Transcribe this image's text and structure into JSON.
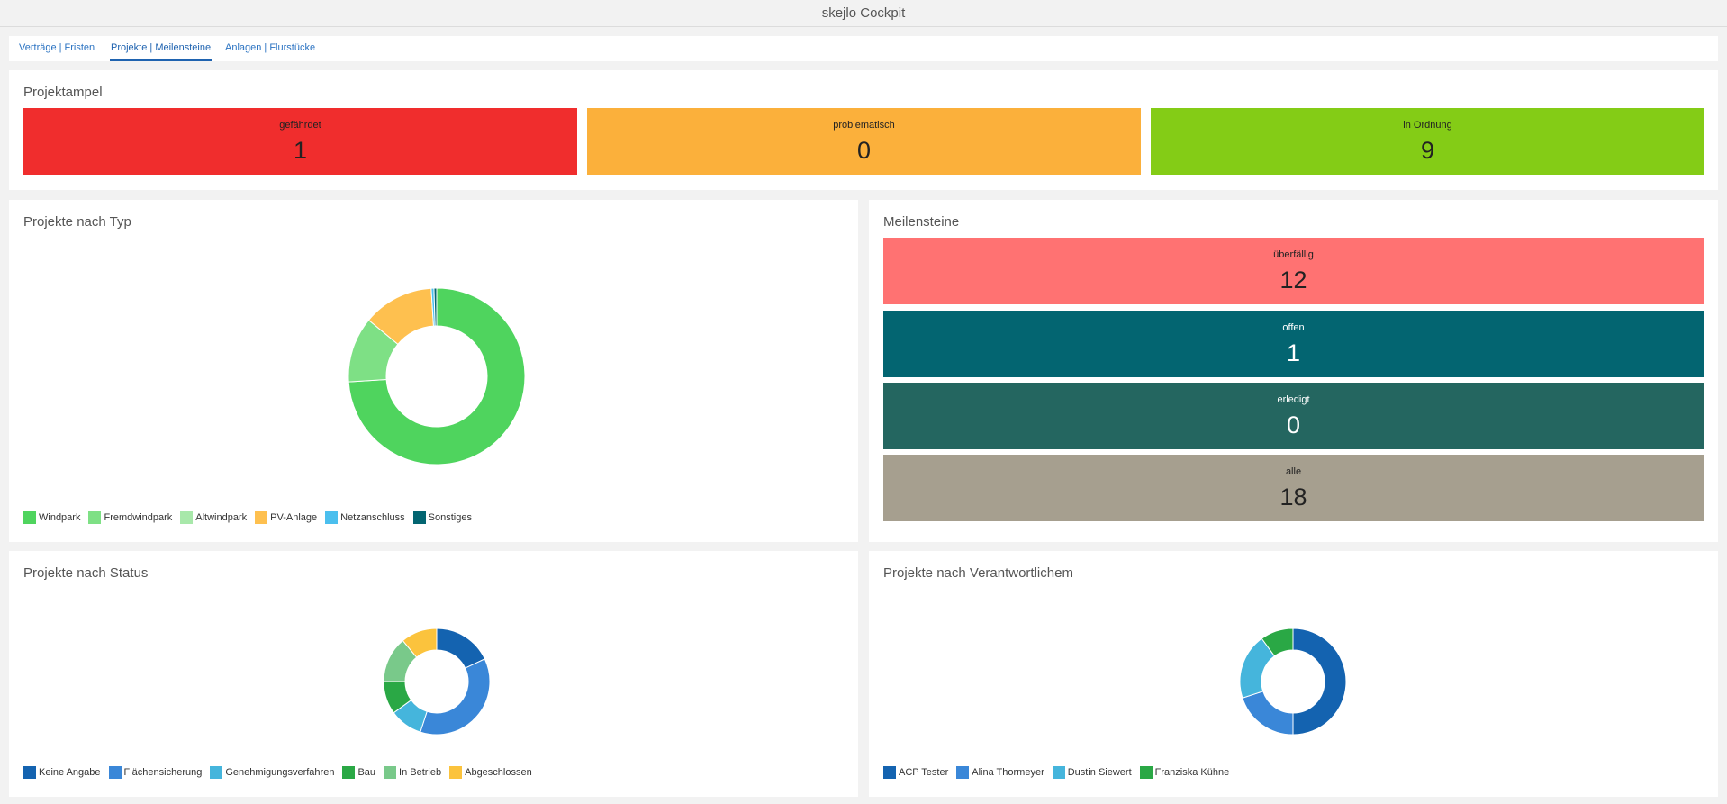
{
  "app": {
    "title": "skejlo Cockpit"
  },
  "tabs": [
    {
      "label": "Verträge | Fristen",
      "active": false
    },
    {
      "label": "Projekte | Meilensteine",
      "active": true
    },
    {
      "label": "Anlagen | Flurstücke",
      "active": false
    }
  ],
  "ampel": {
    "title": "Projektampel",
    "tiles": [
      {
        "label": "gefährdet",
        "value": "1",
        "color": "#f02d2d"
      },
      {
        "label": "problematisch",
        "value": "0",
        "color": "#fbb03b"
      },
      {
        "label": "in Ordnung",
        "value": "9",
        "color": "#84cc16"
      }
    ]
  },
  "milestones": {
    "title": "Meilensteine",
    "tiles": [
      {
        "label": "überfällig",
        "value": "12",
        "color": "#ff7272"
      },
      {
        "label": "offen",
        "value": "1",
        "color": "#036571"
      },
      {
        "label": "erledigt",
        "value": "0",
        "color": "#246660"
      },
      {
        "label": "alle",
        "value": "18",
        "color": "#a69f8f"
      }
    ]
  },
  "charts": {
    "type": {
      "title": "Projekte nach Typ",
      "legend": [
        {
          "label": "Windpark",
          "color": "#4fd45e"
        },
        {
          "label": "Fremdwindpark",
          "color": "#7ee085"
        },
        {
          "label": "Altwindpark",
          "color": "#a8e8aa"
        },
        {
          "label": "PV-Anlage",
          "color": "#fec04f"
        },
        {
          "label": "Netzanschluss",
          "color": "#4bbfee"
        },
        {
          "label": "Sonstiges",
          "color": "#036571"
        }
      ]
    },
    "status": {
      "title": "Projekte nach Status",
      "legend": [
        {
          "label": "Keine Angabe",
          "color": "#1463b0"
        },
        {
          "label": "Flächensicherung",
          "color": "#3a87d8"
        },
        {
          "label": "Genehmigungsverfahren",
          "color": "#45b5dc"
        },
        {
          "label": "Bau",
          "color": "#2aa845"
        },
        {
          "label": "In Betrieb",
          "color": "#79c98a"
        },
        {
          "label": "Abgeschlossen",
          "color": "#fbc33d"
        }
      ]
    },
    "owner": {
      "title": "Projekte nach Verantwortlichem",
      "legend": [
        {
          "label": "ACP Tester",
          "color": "#1463b0"
        },
        {
          "label": "Alina Thormeyer",
          "color": "#3a87d8"
        },
        {
          "label": "Dustin Siewert",
          "color": "#45b5dc"
        },
        {
          "label": "Franziska Kühne",
          "color": "#2aa845"
        }
      ]
    }
  },
  "chart_data": [
    {
      "type": "pie",
      "categories": [
        "Windpark",
        "Fremdwindpark",
        "Altwindpark",
        "PV-Anlage",
        "Netzanschluss",
        "Sonstiges"
      ],
      "values": [
        74,
        12,
        0,
        13,
        0.5,
        0.5
      ]
    },
    {
      "type": "pie",
      "categories": [
        "Keine Angabe",
        "Flächensicherung",
        "Genehmigungsverfahren",
        "Bau",
        "In Betrieb",
        "Abgeschlossen"
      ],
      "values": [
        18,
        37,
        10,
        10,
        14,
        11
      ]
    },
    {
      "type": "pie",
      "categories": [
        "ACP Tester",
        "Alina Thormeyer",
        "Dustin Siewert",
        "Franziska Kühne"
      ],
      "values": [
        50,
        20,
        20,
        10
      ]
    }
  ]
}
